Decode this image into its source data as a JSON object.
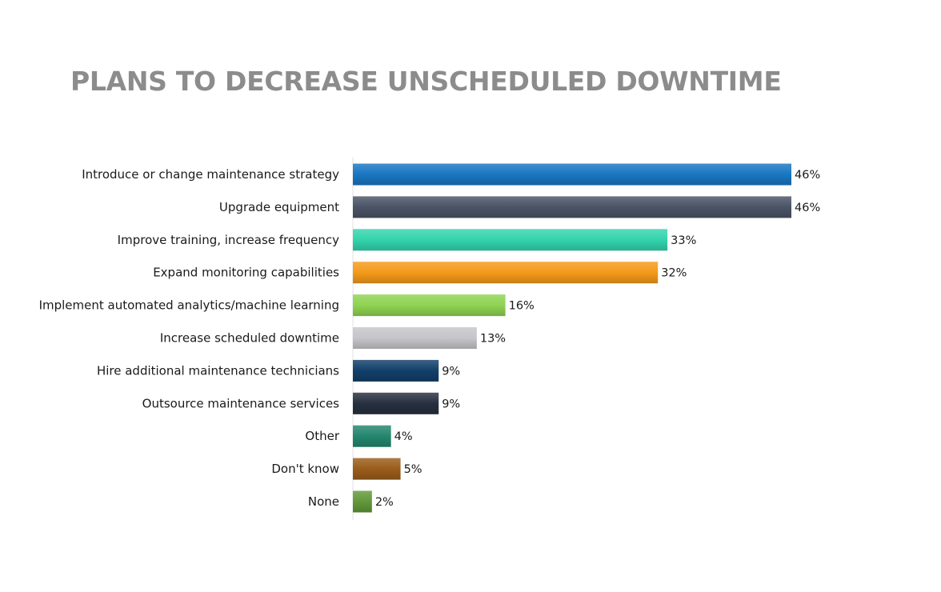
{
  "chart_data": {
    "type": "bar",
    "orientation": "horizontal",
    "title": "PLANS TO DECREASE UNSCHEDULED DOWNTIME",
    "categories": [
      "Introduce or change maintenance strategy",
      "Upgrade equipment",
      "Improve training, increase frequency",
      "Expand monitoring capabilities",
      "Implement automated analytics/machine learning",
      "Increase scheduled downtime",
      "Hire additional maintenance technicians",
      "Outsource maintenance services",
      "Other",
      "Don't know",
      "None"
    ],
    "values": [
      46,
      46,
      33,
      32,
      16,
      13,
      9,
      9,
      4,
      5,
      2
    ],
    "value_labels": [
      "46%",
      "46%",
      "33%",
      "32%",
      "16%",
      "13%",
      "9%",
      "9%",
      "4%",
      "5%",
      "2%"
    ],
    "unit": "%",
    "colors": [
      "#1976c2",
      "#4a5466",
      "#33d4ad",
      "#f49a1a",
      "#8fd352",
      "#c6c6ca",
      "#123f69",
      "#273040",
      "#24866e",
      "#9a5d1a",
      "#62983a"
    ],
    "xlim": [
      0,
      46
    ],
    "grid": false,
    "legend": "none"
  }
}
